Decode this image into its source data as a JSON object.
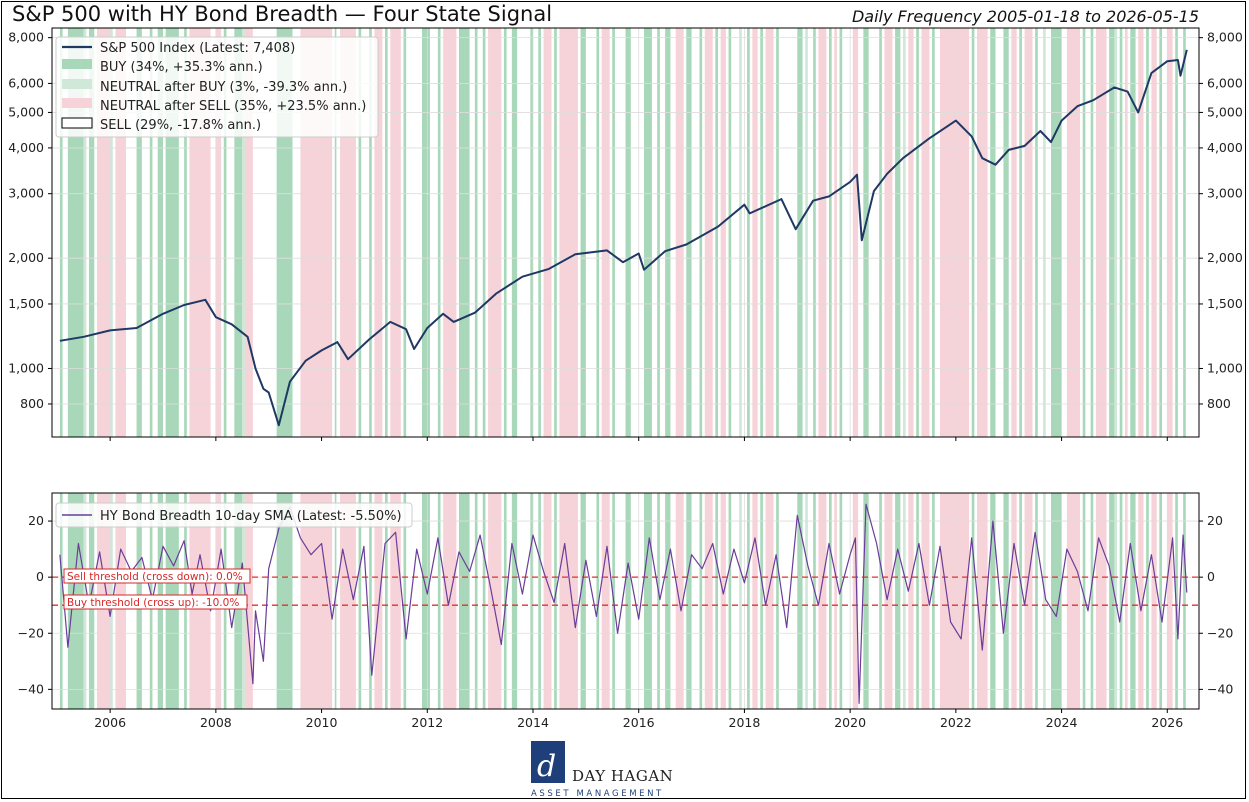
{
  "header": {
    "title": "S&P 500 with HY Bond Breadth — Four State Signal",
    "subtitle": "Daily Frequency 2005-01-18 to 2026-05-15"
  },
  "logo": {
    "name": "DAY HAGAN",
    "tagline": "ASSET MANAGEMENT"
  },
  "colors": {
    "sp500_line": "#1f3864",
    "breadth_line": "#6a3d9a",
    "buy": "#a8d8b9",
    "neutral_after_buy": "#cfe8d8",
    "neutral_after_sell": "#f6d3d8",
    "sell": "#ffffff",
    "threshold": "#e03030"
  },
  "chart_data": [
    {
      "type": "line",
      "title": "S&P 500 with HY Bond Breadth — Four State Signal",
      "yscale": "log",
      "ylim": [
        650,
        8500
      ],
      "xlim": [
        2004.9,
        2026.6
      ],
      "grid": true,
      "legend_placement": "top-left",
      "y_ticks": [
        800,
        1000,
        1500,
        2000,
        3000,
        4000,
        5000,
        6000,
        8000
      ],
      "y_tick_labels": [
        "800",
        "1,000",
        "1,500",
        "2,000",
        "3,000",
        "4,000",
        "5,000",
        "6,000",
        "8,000"
      ],
      "legend": [
        "S&P 500 Index (Latest: 7,408)",
        "BUY (34%, +35.3% ann.)",
        "NEUTRAL after BUY (3%, -39.3% ann.)",
        "NEUTRAL after SELL (35%, +23.5% ann.)",
        "SELL (29%, -17.8% ann.)"
      ],
      "series": [
        {
          "name": "S&P 500 Index (Latest: 7,408)",
          "x": [
            2005.05,
            2005.5,
            2006.0,
            2006.5,
            2007.0,
            2007.4,
            2007.8,
            2008.0,
            2008.3,
            2008.6,
            2008.75,
            2008.9,
            2009.0,
            2009.19,
            2009.4,
            2009.7,
            2010.0,
            2010.3,
            2010.5,
            2010.9,
            2011.3,
            2011.6,
            2011.75,
            2012.0,
            2012.3,
            2012.5,
            2012.9,
            2013.3,
            2013.8,
            2014.3,
            2014.8,
            2015.4,
            2015.7,
            2016.0,
            2016.1,
            2016.5,
            2016.9,
            2017.5,
            2018.0,
            2018.1,
            2018.7,
            2018.97,
            2019.3,
            2019.6,
            2020.0,
            2020.13,
            2020.22,
            2020.45,
            2020.7,
            2021.0,
            2021.5,
            2022.0,
            2022.3,
            2022.5,
            2022.75,
            2023.0,
            2023.3,
            2023.6,
            2023.8,
            2024.0,
            2024.3,
            2024.6,
            2025.0,
            2025.25,
            2025.45,
            2025.7,
            2026.0,
            2026.2,
            2026.25,
            2026.37
          ],
          "values": [
            1190,
            1220,
            1270,
            1290,
            1410,
            1490,
            1540,
            1380,
            1320,
            1220,
            1000,
            880,
            860,
            700,
            920,
            1050,
            1120,
            1180,
            1060,
            1200,
            1340,
            1280,
            1130,
            1290,
            1410,
            1340,
            1420,
            1600,
            1780,
            1870,
            2050,
            2100,
            1950,
            2060,
            1860,
            2090,
            2180,
            2440,
            2800,
            2650,
            2900,
            2400,
            2870,
            2950,
            3230,
            3380,
            2240,
            3050,
            3400,
            3750,
            4250,
            4750,
            4300,
            3750,
            3600,
            3950,
            4050,
            4450,
            4150,
            4750,
            5200,
            5400,
            5850,
            5700,
            5000,
            6400,
            6900,
            6950,
            6300,
            7408
          ]
        }
      ],
      "states": [
        {
          "state": "BUY",
          "ranges": [
            [
              2005.05,
              2005.1
            ],
            [
              2005.2,
              2005.5
            ],
            [
              2005.6,
              2005.7
            ],
            [
              2006.5,
              2006.6
            ],
            [
              2006.75,
              2006.8
            ],
            [
              2006.9,
              2007.0
            ],
            [
              2007.05,
              2007.3
            ],
            [
              2007.4,
              2007.45
            ],
            [
              2008.15,
              2008.2
            ],
            [
              2008.35,
              2008.5
            ],
            [
              2009.15,
              2009.45
            ],
            [
              2010.25,
              2010.28
            ],
            [
              2010.7,
              2010.75
            ],
            [
              2010.9,
              2010.95
            ],
            [
              2011.2,
              2011.25
            ],
            [
              2011.55,
              2011.6
            ],
            [
              2011.9,
              2012.05
            ],
            [
              2012.2,
              2012.25
            ],
            [
              2012.6,
              2012.8
            ],
            [
              2012.9,
              2012.95
            ],
            [
              2013.05,
              2013.1
            ],
            [
              2013.45,
              2013.5
            ],
            [
              2013.6,
              2013.7
            ],
            [
              2013.95,
              2014.0
            ],
            [
              2014.1,
              2014.15
            ],
            [
              2014.4,
              2014.45
            ],
            [
              2014.9,
              2015.0
            ],
            [
              2015.2,
              2015.25
            ],
            [
              2015.5,
              2015.55
            ],
            [
              2015.75,
              2015.85
            ],
            [
              2016.1,
              2016.25
            ],
            [
              2016.35,
              2016.4
            ],
            [
              2016.5,
              2016.6
            ],
            [
              2016.9,
              2017.0
            ],
            [
              2017.15,
              2017.2
            ],
            [
              2017.45,
              2017.5
            ],
            [
              2017.7,
              2017.75
            ],
            [
              2018.05,
              2018.1
            ],
            [
              2018.3,
              2018.35
            ],
            [
              2018.6,
              2018.65
            ],
            [
              2019.0,
              2019.1
            ],
            [
              2019.3,
              2019.35
            ],
            [
              2019.6,
              2019.65
            ],
            [
              2019.8,
              2019.85
            ],
            [
              2020.25,
              2020.35
            ],
            [
              2020.55,
              2020.6
            ],
            [
              2020.85,
              2020.95
            ],
            [
              2021.25,
              2021.3
            ],
            [
              2021.55,
              2021.6
            ],
            [
              2022.3,
              2022.35
            ],
            [
              2022.65,
              2022.75
            ],
            [
              2022.9,
              2023.0
            ],
            [
              2023.2,
              2023.25
            ],
            [
              2023.5,
              2023.55
            ],
            [
              2023.8,
              2024.0
            ],
            [
              2024.4,
              2024.45
            ],
            [
              2024.55,
              2024.6
            ],
            [
              2024.9,
              2025.0
            ],
            [
              2025.1,
              2025.15
            ],
            [
              2025.3,
              2025.4
            ],
            [
              2025.6,
              2025.65
            ],
            [
              2025.85,
              2025.9
            ],
            [
              2026.15,
              2026.2
            ],
            [
              2026.3,
              2026.35
            ]
          ]
        },
        {
          "state": "NEUTRAL after BUY",
          "ranges": [
            [
              2005.5,
              2005.55
            ],
            [
              2006.0,
              2006.05
            ],
            [
              2008.5,
              2008.55
            ],
            [
              2013.3,
              2013.35
            ],
            [
              2017.9,
              2017.95
            ],
            [
              2019.15,
              2019.2
            ],
            [
              2021.0,
              2021.05
            ],
            [
              2023.65,
              2023.7
            ],
            [
              2025.0,
              2025.05
            ]
          ]
        },
        {
          "state": "NEUTRAL after SELL",
          "ranges": [
            [
              2005.75,
              2006.0
            ],
            [
              2006.1,
              2006.3
            ],
            [
              2007.5,
              2007.9
            ],
            [
              2008.0,
              2008.1
            ],
            [
              2008.55,
              2008.7
            ],
            [
              2009.6,
              2010.2
            ],
            [
              2010.35,
              2010.65
            ],
            [
              2011.0,
              2011.15
            ],
            [
              2011.3,
              2011.5
            ],
            [
              2012.3,
              2012.55
            ],
            [
              2013.15,
              2013.4
            ],
            [
              2014.2,
              2014.35
            ],
            [
              2014.5,
              2014.85
            ],
            [
              2015.3,
              2015.45
            ],
            [
              2016.7,
              2016.85
            ],
            [
              2017.25,
              2017.4
            ],
            [
              2017.55,
              2017.65
            ],
            [
              2018.15,
              2018.25
            ],
            [
              2018.4,
              2018.55
            ],
            [
              2019.4,
              2019.55
            ],
            [
              2019.7,
              2019.75
            ],
            [
              2020.05,
              2020.15
            ],
            [
              2020.65,
              2020.8
            ],
            [
              2021.1,
              2021.2
            ],
            [
              2021.35,
              2021.5
            ],
            [
              2021.7,
              2022.25
            ],
            [
              2022.4,
              2022.6
            ],
            [
              2023.05,
              2023.15
            ],
            [
              2023.3,
              2023.45
            ],
            [
              2024.1,
              2024.35
            ],
            [
              2024.65,
              2024.85
            ],
            [
              2025.2,
              2025.25
            ],
            [
              2025.45,
              2025.55
            ],
            [
              2025.7,
              2025.8
            ],
            [
              2026.0,
              2026.1
            ]
          ]
        }
      ]
    },
    {
      "type": "line",
      "yscale": "linear",
      "ylim": [
        -47,
        30
      ],
      "xlim": [
        2004.9,
        2026.6
      ],
      "grid": true,
      "legend_placement": "top-left",
      "y_ticks": [
        -40,
        -20,
        0,
        20
      ],
      "x_ticks": [
        2006,
        2008,
        2010,
        2012,
        2014,
        2016,
        2018,
        2020,
        2022,
        2024,
        2026
      ],
      "legend": [
        "HY Bond Breadth 10-day SMA (Latest: -5.50%)"
      ],
      "annotations": [
        {
          "label": "Sell threshold (cross down): 0.0%",
          "y": 0
        },
        {
          "label": "Buy threshold (cross up): -10.0%",
          "y": -10
        }
      ],
      "series": [
        {
          "name": "HY Bond Breadth 10-day SMA (Latest: -5.50%)",
          "x": [
            2005.05,
            2005.2,
            2005.4,
            2005.6,
            2005.8,
            2006.0,
            2006.2,
            2006.4,
            2006.6,
            2006.8,
            2007.0,
            2007.2,
            2007.4,
            2007.55,
            2007.7,
            2007.9,
            2008.1,
            2008.3,
            2008.5,
            2008.7,
            2008.75,
            2008.9,
            2009.0,
            2009.2,
            2009.4,
            2009.6,
            2009.8,
            2010.0,
            2010.2,
            2010.4,
            2010.6,
            2010.8,
            2010.95,
            2011.2,
            2011.4,
            2011.6,
            2011.8,
            2012.0,
            2012.2,
            2012.4,
            2012.6,
            2012.8,
            2013.0,
            2013.2,
            2013.4,
            2013.6,
            2013.8,
            2014.0,
            2014.2,
            2014.4,
            2014.6,
            2014.8,
            2015.0,
            2015.2,
            2015.4,
            2015.6,
            2015.8,
            2016.0,
            2016.2,
            2016.4,
            2016.6,
            2016.8,
            2017.0,
            2017.2,
            2017.4,
            2017.6,
            2017.8,
            2018.0,
            2018.2,
            2018.4,
            2018.6,
            2018.8,
            2019.0,
            2019.2,
            2019.4,
            2019.6,
            2019.8,
            2020.0,
            2020.1,
            2020.17,
            2020.3,
            2020.5,
            2020.7,
            2020.9,
            2021.1,
            2021.3,
            2021.5,
            2021.7,
            2021.9,
            2022.1,
            2022.3,
            2022.5,
            2022.7,
            2022.9,
            2023.1,
            2023.3,
            2023.5,
            2023.7,
            2023.9,
            2024.1,
            2024.3,
            2024.5,
            2024.7,
            2024.9,
            2025.1,
            2025.3,
            2025.5,
            2025.7,
            2025.9,
            2026.1,
            2026.2,
            2026.3,
            2026.37
          ],
          "values": [
            8,
            -25,
            12,
            -10,
            9,
            -14,
            10,
            2,
            7,
            -8,
            11,
            4,
            13,
            -6,
            8,
            -12,
            10,
            -18,
            5,
            -38,
            -12,
            -30,
            3,
            18,
            25,
            14,
            8,
            12,
            -15,
            10,
            -8,
            11,
            -35,
            12,
            16,
            -22,
            10,
            -6,
            14,
            -10,
            9,
            2,
            15,
            -4,
            -24,
            12,
            -6,
            15,
            2,
            -9,
            12,
            -18,
            6,
            -14,
            11,
            -20,
            5,
            -15,
            14,
            -8,
            10,
            -12,
            8,
            3,
            12,
            -6,
            10,
            -2,
            14,
            -10,
            8,
            -18,
            22,
            4,
            -10,
            12,
            -6,
            8,
            14,
            -45,
            26,
            12,
            -8,
            10,
            -5,
            12,
            -10,
            11,
            -16,
            -22,
            14,
            -26,
            20,
            -20,
            12,
            -10,
            16,
            -8,
            -14,
            10,
            2,
            -12,
            14,
            4,
            -16,
            12,
            -12,
            8,
            -16,
            14,
            -22,
            15,
            -5.5
          ]
        }
      ],
      "x_tick_labels": [
        "2006",
        "2008",
        "2010",
        "2012",
        "2014",
        "2016",
        "2018",
        "2020",
        "2022",
        "2024",
        "2026"
      ],
      "y_tick_labels": [
        "−40",
        "−20",
        "0",
        "20"
      ]
    }
  ]
}
